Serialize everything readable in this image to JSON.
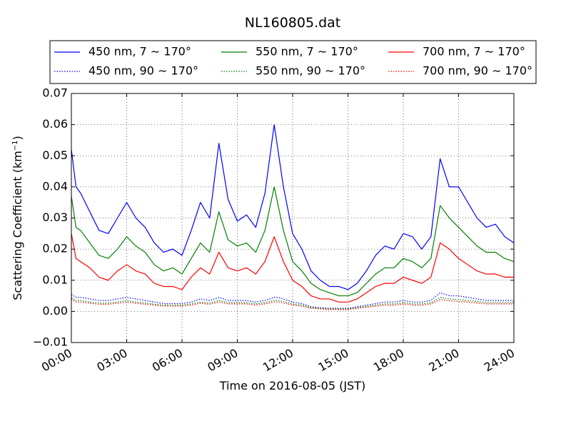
{
  "chart_data": {
    "type": "line",
    "title": "NL160805.dat",
    "xlabel": "Time on 2016-08-05 (JST)",
    "ylabel": "Scattering Coefficient (km",
    "ylabel_sup": "−1",
    "ylabel_end": ")",
    "xlim": [
      0,
      24
    ],
    "ylim": [
      -0.01,
      0.07
    ],
    "grid": true,
    "legend_position": "top",
    "x_ticks": [
      0,
      3,
      6,
      9,
      12,
      15,
      18,
      21,
      24
    ],
    "x_tick_labels": [
      "00:00",
      "03:00",
      "06:00",
      "09:00",
      "12:00",
      "15:00",
      "18:00",
      "21:00",
      "24:00"
    ],
    "y_ticks": [
      -0.01,
      0.0,
      0.01,
      0.02,
      0.03,
      0.04,
      0.05,
      0.06,
      0.07
    ],
    "y_tick_labels": [
      "−0.01",
      "0.00",
      "0.01",
      "0.02",
      "0.03",
      "0.04",
      "0.05",
      "0.06",
      "0.07"
    ],
    "x": [
      0,
      0.25,
      0.5,
      1,
      1.5,
      2,
      2.5,
      3,
      3.5,
      4,
      4.5,
      5,
      5.5,
      6,
      6.5,
      7,
      7.5,
      8,
      8.5,
      9,
      9.5,
      10,
      10.5,
      11,
      11.25,
      11.5,
      12,
      12.5,
      13,
      13.5,
      14,
      14.5,
      15,
      15.5,
      16,
      16.5,
      17,
      17.5,
      18,
      18.5,
      19,
      19.5,
      20,
      20.5,
      21,
      21.5,
      22,
      22.5,
      23,
      23.5,
      24
    ],
    "series": [
      {
        "name": "450 nm, 7 ∼ 170°",
        "color": "#0000ff",
        "style": "solid",
        "values": [
          0.052,
          0.04,
          0.038,
          0.032,
          0.026,
          0.025,
          0.03,
          0.035,
          0.03,
          0.027,
          0.022,
          0.019,
          0.02,
          0.018,
          0.026,
          0.035,
          0.03,
          0.054,
          0.036,
          0.029,
          0.031,
          0.027,
          0.038,
          0.06,
          0.05,
          0.04,
          0.025,
          0.02,
          0.013,
          0.01,
          0.008,
          0.008,
          0.007,
          0.009,
          0.013,
          0.018,
          0.021,
          0.02,
          0.025,
          0.024,
          0.02,
          0.024,
          0.049,
          0.04,
          0.04,
          0.035,
          0.03,
          0.027,
          0.028,
          0.024,
          0.022
        ]
      },
      {
        "name": "550 nm, 7 ∼ 170°",
        "color": "#008000",
        "style": "solid",
        "values": [
          0.037,
          0.027,
          0.026,
          0.022,
          0.018,
          0.017,
          0.02,
          0.024,
          0.021,
          0.019,
          0.015,
          0.013,
          0.014,
          0.012,
          0.017,
          0.022,
          0.019,
          0.032,
          0.023,
          0.021,
          0.022,
          0.019,
          0.026,
          0.04,
          0.033,
          0.026,
          0.016,
          0.013,
          0.009,
          0.007,
          0.006,
          0.005,
          0.005,
          0.006,
          0.009,
          0.012,
          0.014,
          0.014,
          0.017,
          0.016,
          0.014,
          0.017,
          0.034,
          0.03,
          0.027,
          0.024,
          0.021,
          0.019,
          0.019,
          0.017,
          0.016
        ]
      },
      {
        "name": "700 nm, 7 ∼ 170°",
        "color": "#ff0000",
        "style": "solid",
        "values": [
          0.025,
          0.017,
          0.016,
          0.014,
          0.011,
          0.01,
          0.013,
          0.015,
          0.013,
          0.012,
          0.009,
          0.008,
          0.008,
          0.007,
          0.011,
          0.014,
          0.012,
          0.019,
          0.014,
          0.013,
          0.014,
          0.012,
          0.016,
          0.024,
          0.02,
          0.016,
          0.01,
          0.008,
          0.005,
          0.004,
          0.004,
          0.003,
          0.003,
          0.004,
          0.006,
          0.008,
          0.009,
          0.009,
          0.011,
          0.01,
          0.009,
          0.011,
          0.022,
          0.02,
          0.017,
          0.015,
          0.013,
          0.012,
          0.012,
          0.011,
          0.011
        ]
      },
      {
        "name": "450 nm, 90 ∼ 170°",
        "color": "#0000ff",
        "style": "dotted",
        "values": [
          0.0055,
          0.0045,
          0.0045,
          0.004,
          0.0035,
          0.0035,
          0.004,
          0.0045,
          0.004,
          0.0035,
          0.003,
          0.0025,
          0.0025,
          0.0025,
          0.003,
          0.004,
          0.0035,
          0.0045,
          0.0035,
          0.0035,
          0.0035,
          0.003,
          0.0035,
          0.0045,
          0.0045,
          0.004,
          0.003,
          0.0025,
          0.0015,
          0.0012,
          0.001,
          0.001,
          0.001,
          0.0015,
          0.002,
          0.0025,
          0.003,
          0.003,
          0.0035,
          0.003,
          0.003,
          0.0035,
          0.006,
          0.005,
          0.005,
          0.0045,
          0.004,
          0.0035,
          0.0035,
          0.0035,
          0.0035
        ]
      },
      {
        "name": "550 nm, 90 ∼ 170°",
        "color": "#008000",
        "style": "dotted",
        "values": [
          0.0045,
          0.0035,
          0.0035,
          0.003,
          0.0027,
          0.0027,
          0.003,
          0.0035,
          0.003,
          0.0027,
          0.0023,
          0.002,
          0.002,
          0.002,
          0.0024,
          0.003,
          0.0027,
          0.0035,
          0.0028,
          0.0028,
          0.0028,
          0.0024,
          0.0028,
          0.0035,
          0.0035,
          0.0032,
          0.0024,
          0.002,
          0.0012,
          0.001,
          0.0008,
          0.0008,
          0.0008,
          0.0012,
          0.0016,
          0.002,
          0.0024,
          0.0024,
          0.0028,
          0.0024,
          0.0024,
          0.0028,
          0.0045,
          0.004,
          0.0038,
          0.0035,
          0.0032,
          0.0028,
          0.0028,
          0.0028,
          0.0028
        ]
      },
      {
        "name": "700 nm, 90 ∼ 170°",
        "color": "#ff0000",
        "style": "dotted",
        "values": [
          0.004,
          0.003,
          0.003,
          0.0026,
          0.0023,
          0.0023,
          0.0026,
          0.003,
          0.0026,
          0.0023,
          0.002,
          0.0017,
          0.0017,
          0.0017,
          0.002,
          0.0026,
          0.0023,
          0.003,
          0.0024,
          0.0024,
          0.0024,
          0.002,
          0.0024,
          0.003,
          0.003,
          0.0027,
          0.002,
          0.0017,
          0.001,
          0.0008,
          0.0006,
          0.0006,
          0.0006,
          0.001,
          0.0013,
          0.0017,
          0.002,
          0.002,
          0.0024,
          0.002,
          0.002,
          0.0024,
          0.0038,
          0.0034,
          0.0032,
          0.003,
          0.0027,
          0.0024,
          0.0024,
          0.0024,
          0.0024
        ]
      }
    ]
  }
}
